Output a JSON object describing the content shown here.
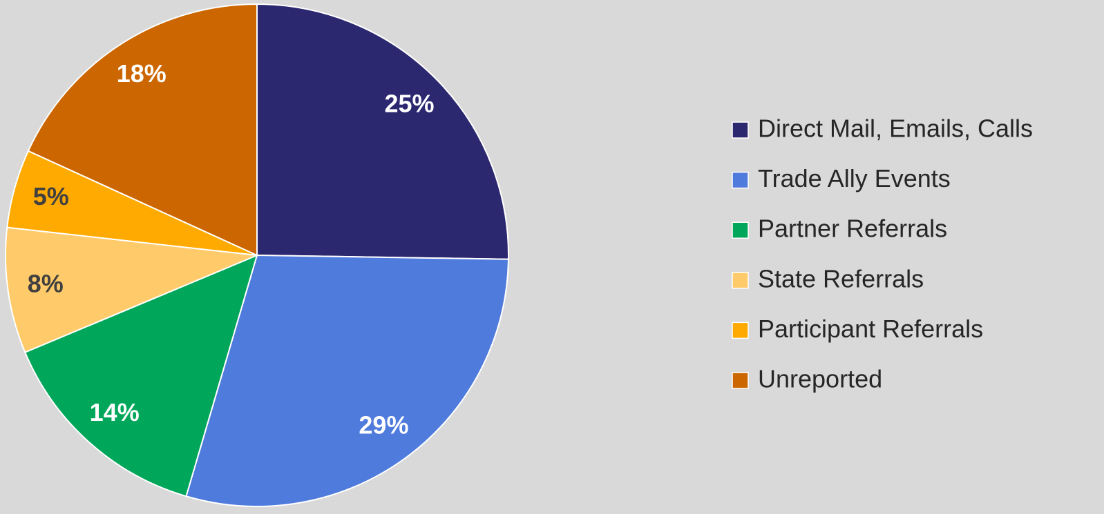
{
  "chart_data": {
    "type": "pie",
    "categories": [
      "Direct Mail, Emails, Calls",
      "Trade Ally Events",
      "Partner Referrals",
      "State Referrals",
      "Participant Referrals",
      "Unreported"
    ],
    "values": [
      25,
      29,
      14,
      8,
      5,
      18
    ],
    "value_labels": [
      "25%",
      "29%",
      "14%",
      "8%",
      "5%",
      "18%"
    ],
    "colors": [
      "#2b2870",
      "#4f7bdc",
      "#00a65a",
      "#ffca69",
      "#ffaa00",
      "#cc6600"
    ],
    "legend": "right"
  }
}
